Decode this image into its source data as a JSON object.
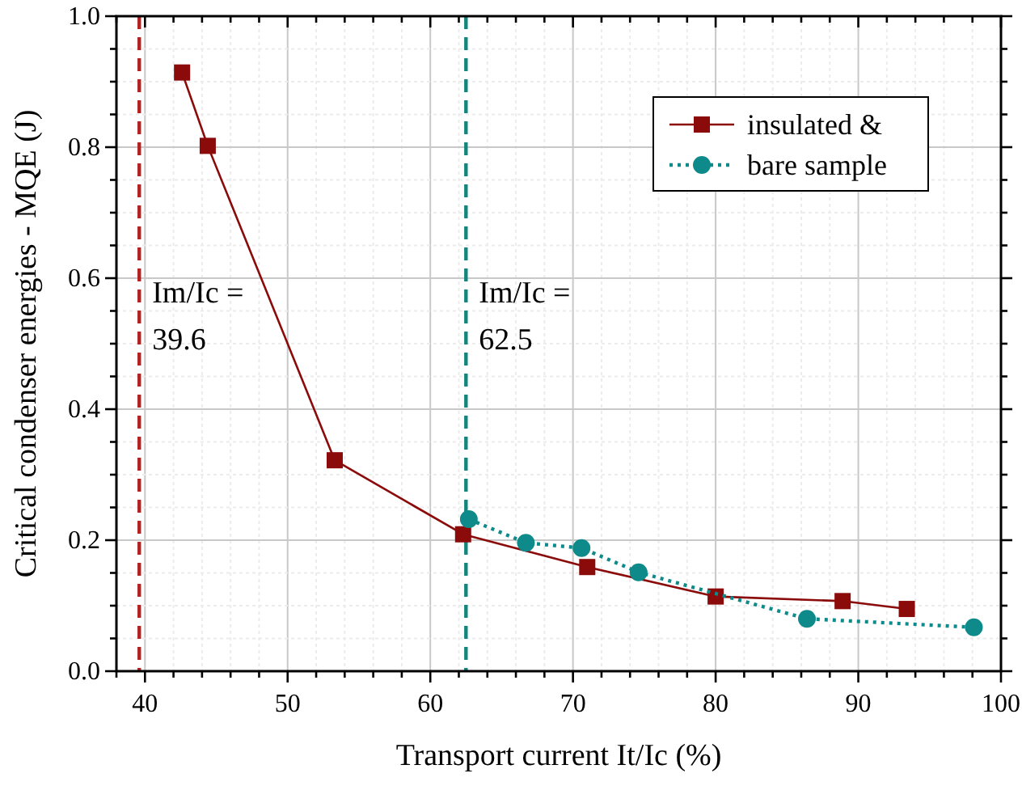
{
  "chart_data": {
    "type": "line",
    "xlabel": "Transport current It/Ic (%)",
    "ylabel": "Critical condenser energies - MQE (J)",
    "xlim": [
      38,
      100
    ],
    "ylim": [
      0,
      1
    ],
    "xticks": [
      {
        "value": 38,
        "label": null
      },
      40,
      {
        "value": 42,
        "label": null
      },
      {
        "value": 44,
        "label": null
      },
      {
        "value": 46,
        "label": null
      },
      {
        "value": 48,
        "label": null
      },
      50,
      {
        "value": 52,
        "label": null
      },
      {
        "value": 54,
        "label": null
      },
      {
        "value": 56,
        "label": null
      },
      {
        "value": 58,
        "label": null
      },
      60,
      {
        "value": 62,
        "label": null
      },
      {
        "value": 64,
        "label": null
      },
      {
        "value": 66,
        "label": null
      },
      {
        "value": 68,
        "label": null
      },
      70,
      {
        "value": 72,
        "label": null
      },
      {
        "value": 74,
        "label": null
      },
      {
        "value": 76,
        "label": null
      },
      {
        "value": 78,
        "label": null
      },
      80,
      {
        "value": 82,
        "label": null
      },
      {
        "value": 84,
        "label": null
      },
      {
        "value": 86,
        "label": null
      },
      {
        "value": 88,
        "label": null
      },
      90,
      {
        "value": 92,
        "label": null
      },
      {
        "value": 94,
        "label": null
      },
      {
        "value": 96,
        "label": null
      },
      {
        "value": 98,
        "label": null
      },
      100
    ],
    "yticks": [
      {
        "value": 0,
        "label": "0.0"
      },
      {
        "value": 0.05,
        "label": null
      },
      {
        "value": 0.1,
        "label": null
      },
      {
        "value": 0.15,
        "label": null
      },
      0.2,
      {
        "value": 0.25,
        "label": null
      },
      {
        "value": 0.3,
        "label": null
      },
      {
        "value": 0.35,
        "label": null
      },
      0.4,
      {
        "value": 0.45,
        "label": null
      },
      {
        "value": 0.5,
        "label": null
      },
      {
        "value": 0.55,
        "label": null
      },
      0.6,
      {
        "value": 0.65,
        "label": null
      },
      {
        "value": 0.7,
        "label": null
      },
      {
        "value": 0.75,
        "label": null
      },
      0.8,
      {
        "value": 0.85,
        "label": null
      },
      {
        "value": 0.9,
        "label": null
      },
      {
        "value": 0.95,
        "label": null
      },
      {
        "value": 1,
        "label": "1.0"
      }
    ],
    "grid": true,
    "legend": "top right",
    "series": [
      {
        "name": "insulated &",
        "color": "#8b0a0a",
        "marker": "square",
        "line_style": "solid",
        "x": [
          42.6,
          44.4,
          53.3,
          62.3,
          71.0,
          80.0,
          88.9,
          93.4
        ],
        "values": [
          0.914,
          0.802,
          0.322,
          0.209,
          0.159,
          0.114,
          0.107,
          0.095
        ]
      },
      {
        "name": "bare sample",
        "color": "#0e8a8a",
        "marker": "circle",
        "line_style": "dotted",
        "x": [
          62.7,
          66.7,
          70.6,
          74.6,
          86.4,
          98.1
        ],
        "values": [
          0.232,
          0.196,
          0.188,
          0.151,
          0.08,
          0.067
        ]
      }
    ],
    "ref_lines": [
      {
        "axis": "x",
        "value": 39.6,
        "label": "Im/Ic =\n39.6",
        "color": "#b22222",
        "line_style": "dashed"
      },
      {
        "axis": "x",
        "value": 62.5,
        "label": "Im/Ic =\n62.5",
        "color": "#13857f",
        "line_style": "dashed"
      }
    ]
  }
}
